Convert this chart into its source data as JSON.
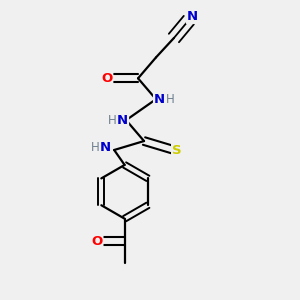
{
  "background_color": "#f0f0f0",
  "bond_color": "#000000",
  "atom_colors": {
    "N": "#0000cc",
    "O": "#ff0000",
    "S": "#cccc00",
    "C": "#000000",
    "H": "#708090"
  },
  "figsize": [
    3.0,
    3.0
  ],
  "dpi": 100
}
